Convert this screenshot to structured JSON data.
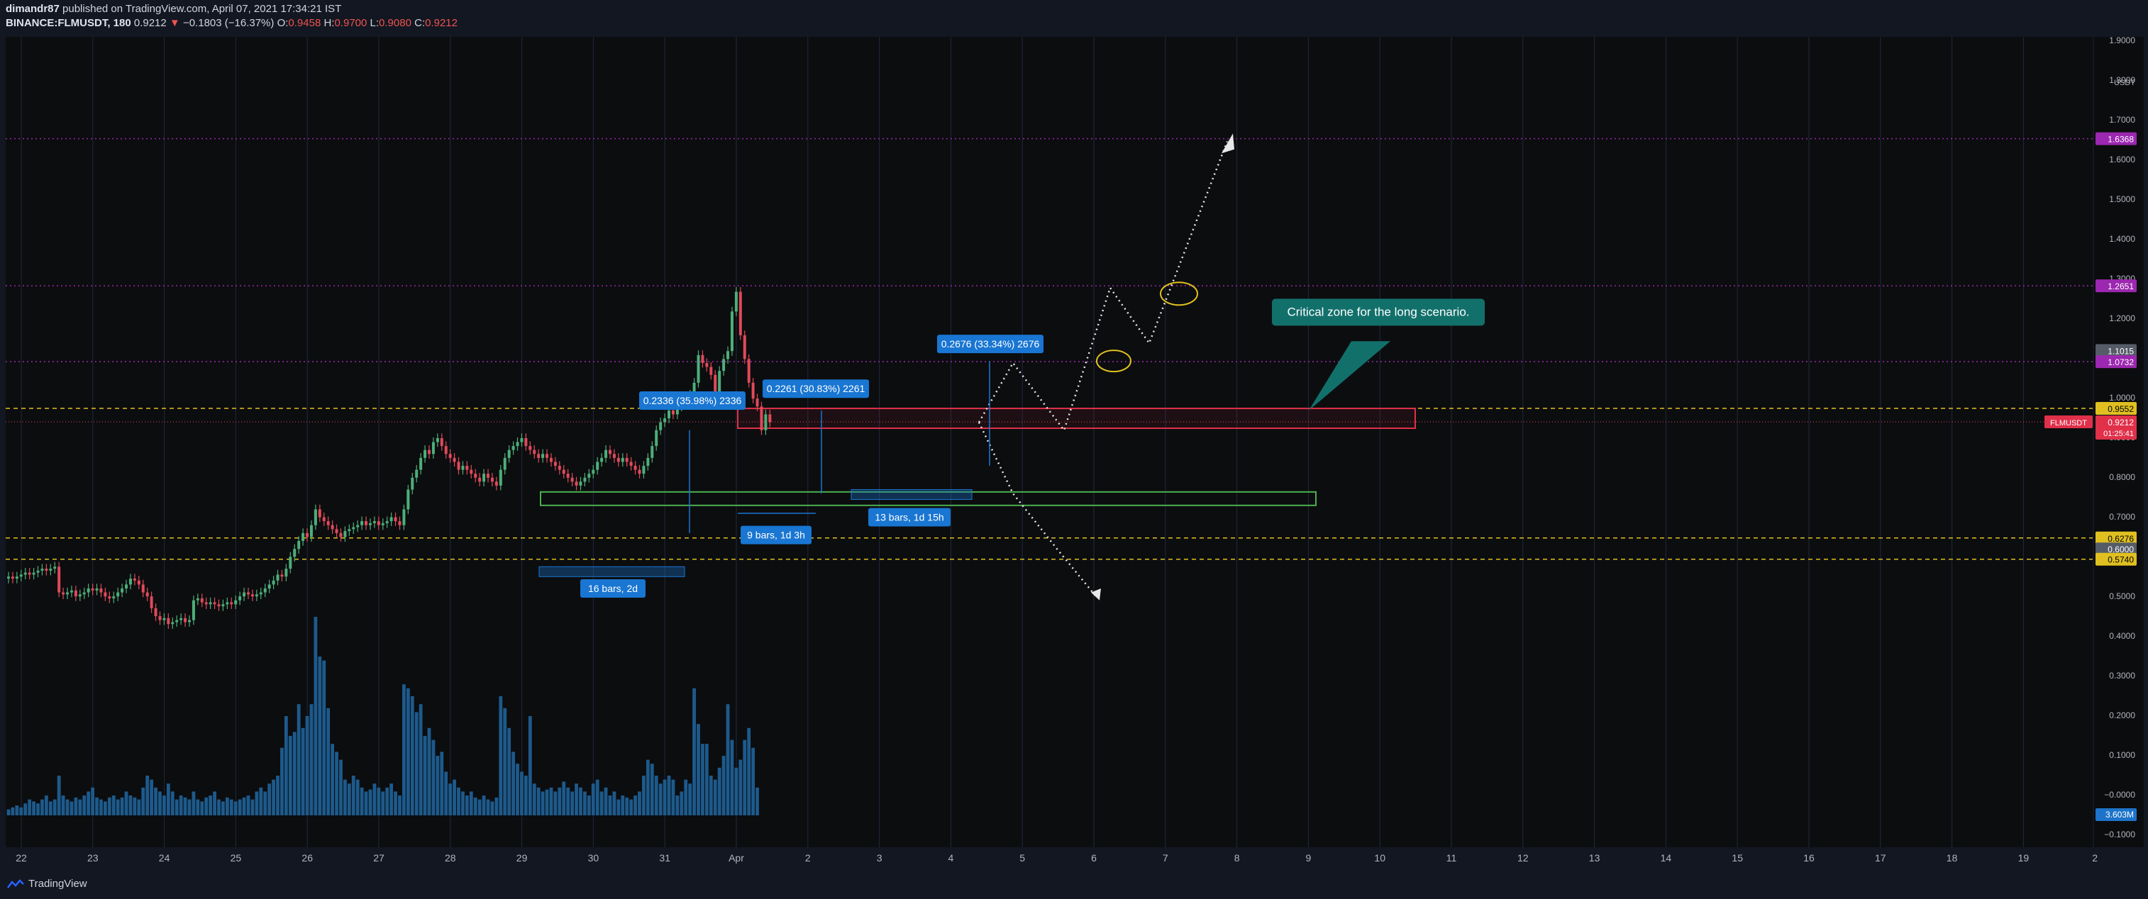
{
  "header": {
    "author": "dimandr87",
    "published": "published on TradingView.com, April 07, 2021 17:34:21 IST",
    "symbol": "BINANCE:FLMUSDT, 180",
    "last": "0.9212",
    "change_arrow": "▼",
    "change": "−0.1803 (−16.37%)",
    "o_label": "O:",
    "o": "0.9458",
    "h_label": "H:",
    "h": "0.9700",
    "l_label": "L:",
    "l": "0.9080",
    "c_label": "C:",
    "c": "0.9212"
  },
  "footer": {
    "brand": "TradingView"
  },
  "colors": {
    "bg": "#0c0d0f",
    "grid": "#1f2a3d",
    "up": "#4caf7a",
    "down": "#e04a5a",
    "volume": "#1d5a8c",
    "purple": "#9c27b0",
    "yellow": "#e0c020",
    "green_box": "#4caf50",
    "red_box": "#e0304a",
    "label_blue": "#1976d2",
    "teal": "#12706b"
  },
  "chart_data": {
    "type": "candlestick",
    "currency": "USDT",
    "y_ticks": [
      "1.9000",
      "1.8000",
      "1.7000",
      "1.6000",
      "1.5000",
      "1.4000",
      "1.3000",
      "1.2000",
      "1.1000",
      "1.0000",
      "0.9000",
      "0.8000",
      "0.7000",
      "0.6000",
      "0.5000",
      "0.4000",
      "0.3000",
      "0.2000",
      "0.1000",
      "−0.0000",
      "−0.1000"
    ],
    "x_ticks": [
      "22",
      "23",
      "24",
      "25",
      "26",
      "27",
      "28",
      "29",
      "30",
      "31",
      "Apr",
      "2",
      "3",
      "4",
      "5",
      "6",
      "7",
      "8",
      "9",
      "10",
      "11",
      "12",
      "13",
      "14",
      "15",
      "16",
      "17",
      "18",
      "19",
      "2"
    ],
    "price_levels": [
      {
        "value": 1.6368,
        "label": "1.6368",
        "color": "#9c27b0",
        "style": "dotted"
      },
      {
        "value": 1.2651,
        "label": "1.2651",
        "color": "#9c27b0",
        "style": "dotted"
      },
      {
        "value": 1.1015,
        "label": "1.1015",
        "color": "#555c68",
        "style": "none"
      },
      {
        "value": 1.0732,
        "label": "1.0732",
        "color": "#9c27b0",
        "style": "dotted"
      },
      {
        "value": 0.9552,
        "label": "0.9552",
        "color": "#e0c020",
        "style": "dashed"
      },
      {
        "value": 0.6276,
        "label": "0.6276",
        "color": "#e0c020",
        "style": "dashed"
      },
      {
        "value": 0.6,
        "label": "0.6000",
        "color": "#555c68",
        "style": "none"
      },
      {
        "value": 0.574,
        "label": "0.5740",
        "color": "#e0c020",
        "style": "dashed"
      }
    ],
    "current_price": {
      "symbol": "FLMUSDT",
      "value": "0.9212",
      "countdown": "01:25:41"
    },
    "volume_label": "3.603M",
    "closes": [
      0.53,
      0.525,
      0.53,
      0.535,
      0.54,
      0.535,
      0.54,
      0.545,
      0.55,
      0.545,
      0.55,
      0.555,
      0.49,
      0.485,
      0.49,
      0.495,
      0.48,
      0.485,
      0.49,
      0.5,
      0.495,
      0.5,
      0.49,
      0.48,
      0.475,
      0.48,
      0.49,
      0.5,
      0.51,
      0.525,
      0.52,
      0.51,
      0.49,
      0.48,
      0.45,
      0.43,
      0.42,
      0.425,
      0.41,
      0.415,
      0.42,
      0.425,
      0.415,
      0.42,
      0.47,
      0.475,
      0.465,
      0.46,
      0.465,
      0.46,
      0.455,
      0.46,
      0.465,
      0.46,
      0.47,
      0.48,
      0.49,
      0.485,
      0.48,
      0.485,
      0.49,
      0.5,
      0.51,
      0.52,
      0.535,
      0.53,
      0.55,
      0.58,
      0.6,
      0.62,
      0.64,
      0.63,
      0.66,
      0.7,
      0.68,
      0.67,
      0.66,
      0.65,
      0.64,
      0.63,
      0.645,
      0.65,
      0.655,
      0.66,
      0.67,
      0.66,
      0.665,
      0.67,
      0.66,
      0.665,
      0.67,
      0.68,
      0.67,
      0.66,
      0.7,
      0.75,
      0.78,
      0.8,
      0.83,
      0.85,
      0.84,
      0.87,
      0.88,
      0.86,
      0.84,
      0.83,
      0.82,
      0.8,
      0.81,
      0.8,
      0.79,
      0.78,
      0.77,
      0.79,
      0.78,
      0.77,
      0.76,
      0.8,
      0.83,
      0.85,
      0.86,
      0.87,
      0.88,
      0.86,
      0.85,
      0.84,
      0.83,
      0.84,
      0.83,
      0.82,
      0.81,
      0.8,
      0.79,
      0.78,
      0.77,
      0.76,
      0.77,
      0.78,
      0.79,
      0.8,
      0.82,
      0.83,
      0.85,
      0.84,
      0.83,
      0.82,
      0.83,
      0.82,
      0.81,
      0.8,
      0.79,
      0.81,
      0.83,
      0.86,
      0.9,
      0.92,
      0.93,
      0.95,
      0.94,
      0.96,
      0.97,
      0.98,
      0.99,
      1.02,
      1.09,
      1.07,
      1.06,
      1.04,
      0.99,
      1.05,
      1.08,
      1.1,
      1.2,
      1.25,
      1.14,
      1.08,
      1.02,
      0.98,
      0.96,
      0.9,
      0.94,
      0.92
    ],
    "volumes": [
      0.015,
      0.02,
      0.025,
      0.02,
      0.03,
      0.04,
      0.035,
      0.03,
      0.04,
      0.05,
      0.035,
      0.04,
      0.1,
      0.05,
      0.04,
      0.035,
      0.045,
      0.04,
      0.05,
      0.06,
      0.07,
      0.045,
      0.04,
      0.035,
      0.045,
      0.05,
      0.04,
      0.045,
      0.06,
      0.05,
      0.045,
      0.04,
      0.07,
      0.1,
      0.09,
      0.07,
      0.06,
      0.05,
      0.08,
      0.06,
      0.04,
      0.05,
      0.045,
      0.04,
      0.06,
      0.04,
      0.035,
      0.045,
      0.05,
      0.06,
      0.04,
      0.035,
      0.045,
      0.04,
      0.035,
      0.04,
      0.045,
      0.05,
      0.04,
      0.06,
      0.07,
      0.06,
      0.08,
      0.09,
      0.1,
      0.17,
      0.25,
      0.2,
      0.21,
      0.28,
      0.22,
      0.25,
      0.28,
      0.5,
      0.4,
      0.39,
      0.27,
      0.18,
      0.16,
      0.14,
      0.09,
      0.08,
      0.1,
      0.09,
      0.07,
      0.06,
      0.065,
      0.08,
      0.07,
      0.06,
      0.07,
      0.08,
      0.06,
      0.05,
      0.33,
      0.32,
      0.3,
      0.26,
      0.28,
      0.2,
      0.22,
      0.19,
      0.15,
      0.16,
      0.11,
      0.08,
      0.09,
      0.07,
      0.06,
      0.05,
      0.06,
      0.045,
      0.04,
      0.05,
      0.04,
      0.035,
      0.045,
      0.3,
      0.27,
      0.22,
      0.16,
      0.13,
      0.11,
      0.1,
      0.25,
      0.08,
      0.07,
      0.06,
      0.065,
      0.07,
      0.06,
      0.07,
      0.085,
      0.07,
      0.06,
      0.08,
      0.07,
      0.06,
      0.05,
      0.08,
      0.09,
      0.06,
      0.07,
      0.05,
      0.06,
      0.04,
      0.05,
      0.045,
      0.04,
      0.05,
      0.06,
      0.1,
      0.14,
      0.13,
      0.1,
      0.08,
      0.09,
      0.1,
      0.09,
      0.05,
      0.06,
      0.09,
      0.08,
      0.32,
      0.23,
      0.18,
      0.18,
      0.1,
      0.09,
      0.12,
      0.15,
      0.28,
      0.19,
      0.12,
      0.14,
      0.19,
      0.22,
      0.17,
      0.07
    ]
  },
  "annotations": {
    "measure1": "0.2336 (35.98%) 2336",
    "measure2": "0.2261 (30.83%) 2261",
    "measure3": "0.2676 (33.34%) 2676",
    "bars1": "16 bars, 2d",
    "bars2": "9 bars, 1d 3h",
    "bars3": "13 bars, 1d 15h",
    "callout": "Critical zone for the long scenario."
  }
}
